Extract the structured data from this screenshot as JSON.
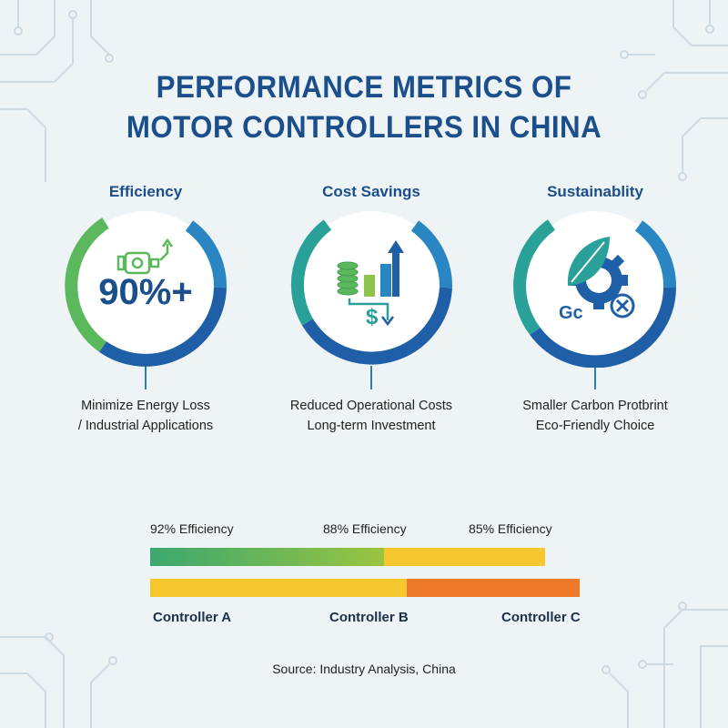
{
  "title": {
    "line1": "PERFORMANCE METRICS OF",
    "line2": "MOTOR CONTROLLERS IN CHINA"
  },
  "metrics": [
    {
      "heading": "Efficiency",
      "value": "90%+",
      "icon": "motor-efficiency-icon",
      "desc_line1": "Minimize Energy Loss",
      "desc_line2": "/ Industrial Applications"
    },
    {
      "heading": "Cost Savings",
      "icon": "coins-chart-dollar-icon",
      "desc_line1": "Reduced Operational Costs",
      "desc_line2": "Long-term Investment"
    },
    {
      "heading": "Sustainablity",
      "icon": "leaf-gear-icon",
      "icon_text": "Gc",
      "desc_line1": "Smaller Carbon Protbrint",
      "desc_line2": "Eco-Friendly Choice"
    }
  ],
  "comparison": {
    "top_labels": [
      "92% Efficiency",
      "88% Efficiency",
      "85% Efficiency"
    ],
    "controllers": [
      "Controller A",
      "Controller B",
      "Controller C"
    ]
  },
  "source": "Source: Industry Analysis, China",
  "colors": {
    "title": "#1a4f8c",
    "green": "#5cb85c",
    "teal": "#2aa198",
    "blue": "#1f5fa8",
    "yellow": "#f6c62f",
    "orange": "#ec7a2a"
  }
}
